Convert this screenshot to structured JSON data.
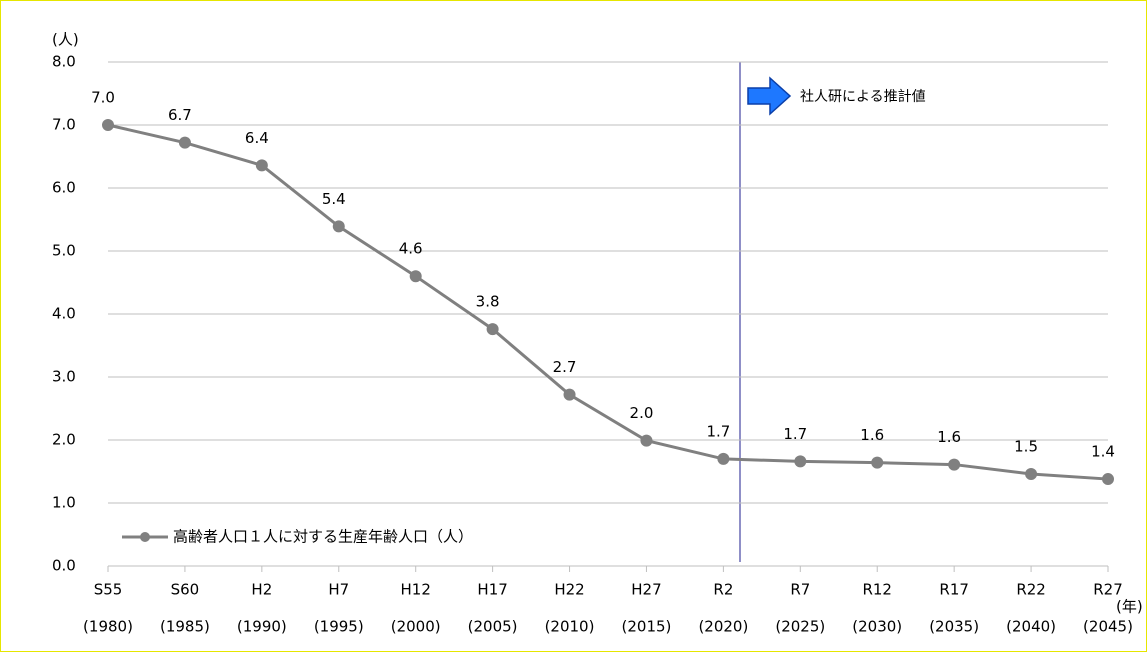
{
  "chart_data": {
    "type": "line",
    "y_unit_label": "(人)",
    "x_unit_label": "(年)",
    "annotation": "社人研による推計値",
    "categories": [
      "S55",
      "S60",
      "H2",
      "H7",
      "H12",
      "H17",
      "H22",
      "H27",
      "R2",
      "R7",
      "R12",
      "R17",
      "R22",
      "R27"
    ],
    "category_years": [
      "(1980)",
      "(1985)",
      "(1990)",
      "(1995)",
      "(2000)",
      "(2005)",
      "(2010)",
      "(2015)",
      "(2020)",
      "(2025)",
      "(2030)",
      "(2035)",
      "(2040)",
      "(2045)"
    ],
    "series": [
      {
        "name": "高齢者人口１人に対する生産年齢人口（人）",
        "color": "#808080",
        "values": [
          7.0,
          6.72,
          6.36,
          5.39,
          4.6,
          3.76,
          2.72,
          1.99,
          1.7,
          1.66,
          1.64,
          1.61,
          1.46,
          1.38
        ],
        "value_labels": [
          "7.0",
          "6.7",
          "6.4",
          "5.4",
          "4.6",
          "3.8",
          "2.7",
          "2.0",
          "1.7",
          "1.7",
          "1.6",
          "1.6",
          "1.5",
          "1.4"
        ]
      }
    ],
    "ylim": [
      0,
      8
    ],
    "yticks": [
      {
        "value": 0,
        "label": "0.0"
      },
      {
        "value": 1,
        "label": "1.0"
      },
      {
        "value": 2,
        "label": "2.0"
      },
      {
        "value": 3,
        "label": "3.0"
      },
      {
        "value": 4,
        "label": "4.0"
      },
      {
        "value": 5,
        "label": "5.0"
      },
      {
        "value": 6,
        "label": "6.0"
      },
      {
        "value": 7,
        "label": "7.0"
      },
      {
        "value": 8,
        "label": "8.0"
      }
    ],
    "grid": true
  }
}
